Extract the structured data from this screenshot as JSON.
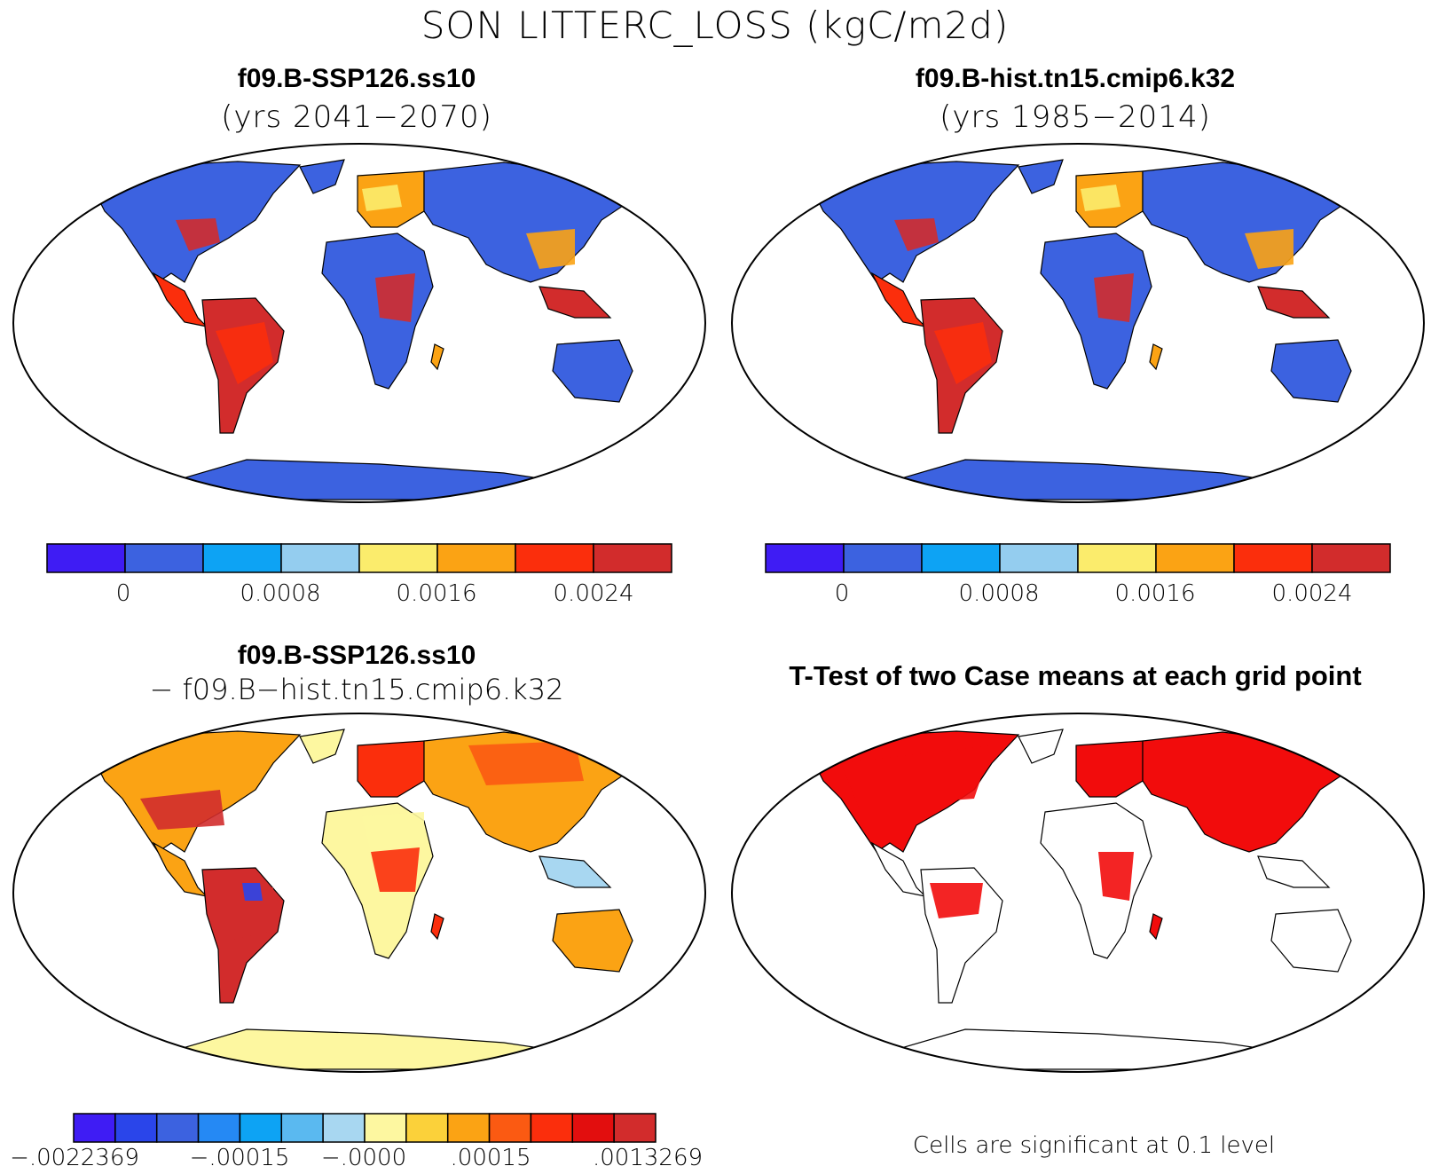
{
  "title": "SON LITTERC_LOSS (kgC/m2d)",
  "panels": {
    "top_left": {
      "case": "f09.B-SSP126.ss10",
      "years": "(yrs 2041−2070)"
    },
    "top_right": {
      "case": "f09.B-hist.tn15.cmip6.k32",
      "years": "(yrs 1985−2014)"
    },
    "bottom_left": {
      "case": "f09.B-SSP126.ss10",
      "subtitle": "− f09.B−hist.tn15.cmip6.k32"
    },
    "bottom_right": {
      "title": "T-Test of two Case means at each grid point",
      "note": "Cells are significant at 0.1 level"
    }
  },
  "colorbars": {
    "abs": {
      "colors": [
        "#3f1cf4",
        "#3c62e0",
        "#0da3f4",
        "#94cdef",
        "#fbec6c",
        "#fba314",
        "#fb2e0c",
        "#d22c2c"
      ],
      "labels": [
        "0",
        "0.0008",
        "0.0016",
        "0.0024"
      ]
    },
    "diff": {
      "colors": [
        "#3f1cf4",
        "#2a45ea",
        "#3c62e0",
        "#2589f4",
        "#0da3f4",
        "#5ab9f0",
        "#a8d7f1",
        "#fdf7a0",
        "#fbd13a",
        "#fba314",
        "#fb5a12",
        "#fb2e0c",
        "#e20e0e",
        "#d22c2c"
      ],
      "labels": [
        "−.0022369",
        "−.00015",
        "−.0000",
        ".00015",
        ".0013269"
      ]
    }
  },
  "map_colors": {
    "ocean": "#ffffff",
    "outline": "#000000",
    "land_low": "#3c62e0",
    "land_mid": "#0da3f4",
    "land_high": "#d22c2c",
    "diff_base": "#fdf7a0",
    "diff_warm": "#fba314",
    "diff_hot": "#d22c2c",
    "diff_cool": "#a8d7f1",
    "ttest_sig": "#f20c0c"
  }
}
